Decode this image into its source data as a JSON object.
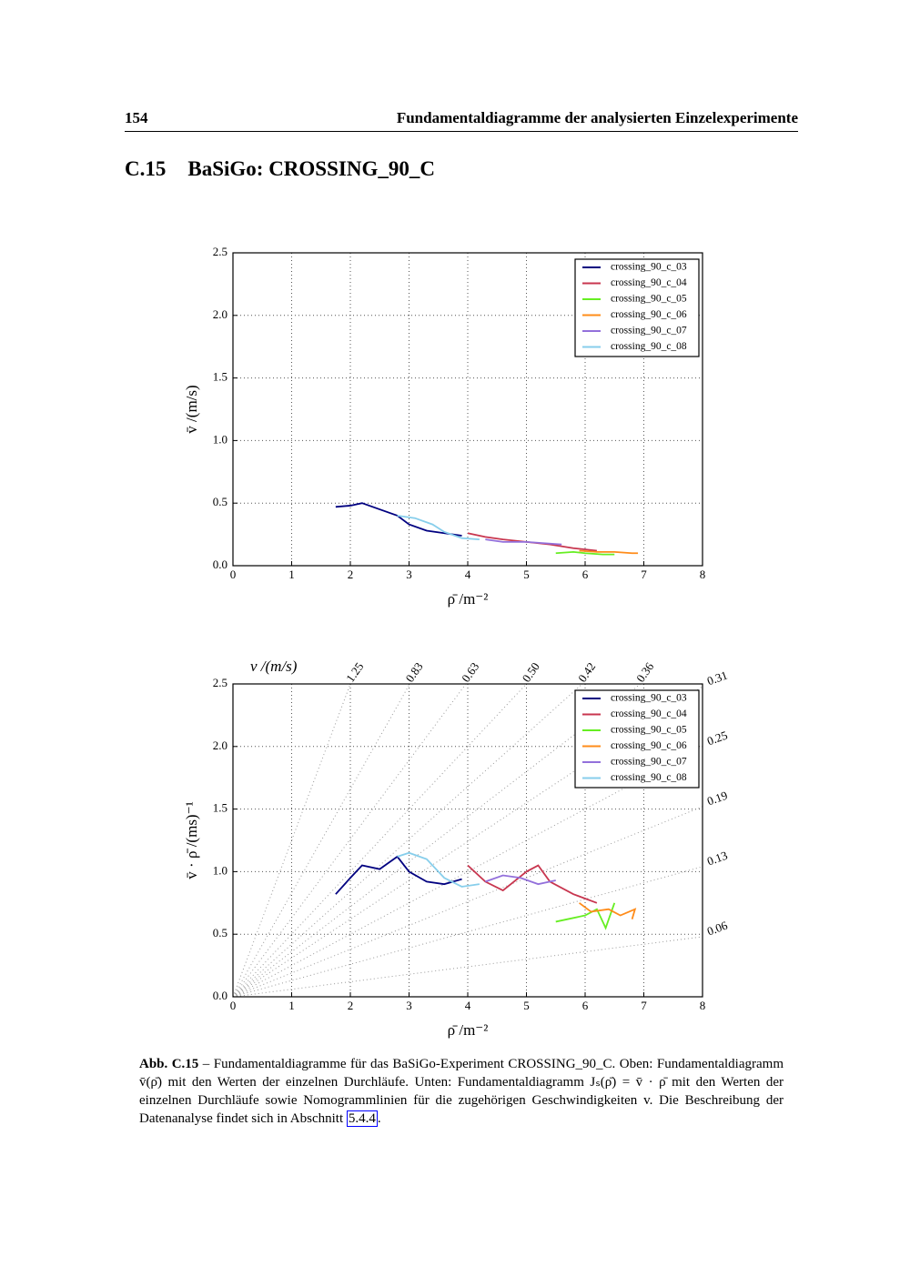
{
  "header": {
    "page_number": "154",
    "running_title": "Fundamentaldiagramme der analysierten Einzelexperimente"
  },
  "section": {
    "number": "C.15",
    "title": "BaSiGo: CROSSING_90_C"
  },
  "chart_data": [
    {
      "type": "line",
      "x_label": "ρ̄   /m⁻²",
      "y_label": "v̄   /(m/s)",
      "xlim": [
        0,
        8
      ],
      "xticks": [
        0,
        1,
        2,
        3,
        4,
        5,
        6,
        7,
        8
      ],
      "ylim": [
        0,
        2.5
      ],
      "yticks": [
        {
          "value": 0,
          "label": "0.0"
        },
        0.5,
        {
          "value": 1,
          "label": "1.0"
        },
        1.5,
        {
          "value": 2,
          "label": "2.0"
        },
        2.5
      ],
      "grid": true,
      "legend": "upper-right",
      "series": [
        {
          "name": "crossing_90_c_03",
          "color": "#000080",
          "x": [
            1.75,
            2.0,
            2.2,
            2.5,
            2.8,
            3.0,
            3.3,
            3.6,
            3.9
          ],
          "values": [
            0.47,
            0.48,
            0.5,
            0.45,
            0.4,
            0.33,
            0.28,
            0.26,
            0.24
          ]
        },
        {
          "name": "crossing_90_c_04",
          "color": "#c8364f",
          "x": [
            4.0,
            4.3,
            4.6,
            5.0,
            5.4,
            5.8,
            6.2
          ],
          "values": [
            0.26,
            0.23,
            0.21,
            0.19,
            0.17,
            0.14,
            0.12
          ]
        },
        {
          "name": "crossing_90_c_05",
          "color": "#66ee22",
          "x": [
            5.5,
            5.8,
            6.0,
            6.3,
            6.5
          ],
          "values": [
            0.1,
            0.11,
            0.1,
            0.09,
            0.09
          ]
        },
        {
          "name": "crossing_90_c_06",
          "color": "#ff8c1a",
          "x": [
            5.9,
            6.2,
            6.5,
            6.8,
            6.9
          ],
          "values": [
            0.12,
            0.11,
            0.11,
            0.1,
            0.1
          ]
        },
        {
          "name": "crossing_90_c_07",
          "color": "#9370db",
          "x": [
            4.3,
            4.6,
            5.0,
            5.3,
            5.6
          ],
          "values": [
            0.21,
            0.19,
            0.19,
            0.18,
            0.17
          ]
        },
        {
          "name": "crossing_90_c_08",
          "color": "#87ceeb",
          "x": [
            2.8,
            3.1,
            3.4,
            3.6,
            3.9,
            4.2
          ],
          "values": [
            0.4,
            0.38,
            0.33,
            0.27,
            0.22,
            0.21
          ]
        }
      ]
    },
    {
      "type": "line",
      "x_label": "ρ̄   /m⁻²",
      "y_label": "v̄ · ρ̄   /(ms)⁻¹",
      "xlim": [
        0,
        8
      ],
      "xticks": [
        0,
        1,
        2,
        3,
        4,
        5,
        6,
        7,
        8
      ],
      "ylim": [
        0,
        2.5
      ],
      "yticks": [
        {
          "value": 0,
          "label": "0.0"
        },
        0.5,
        {
          "value": 1,
          "label": "1.0"
        },
        1.5,
        {
          "value": 2,
          "label": "2.0"
        },
        2.5
      ],
      "grid": true,
      "legend": "upper-right",
      "nomogram_label": "v   /(m/s)",
      "nomogram_top": [
        1.25,
        0.83,
        0.63,
        {
          "value": 0.5,
          "label": "0.50"
        },
        0.42,
        0.36
      ],
      "nomogram_right": [
        0.31,
        0.25,
        0.19,
        0.13,
        0.06
      ],
      "series": [
        {
          "name": "crossing_90_c_03",
          "color": "#000080",
          "x": [
            1.75,
            2.0,
            2.2,
            2.5,
            2.8,
            3.0,
            3.3,
            3.6,
            3.9
          ],
          "values": [
            0.82,
            0.95,
            1.05,
            1.02,
            1.12,
            1.0,
            0.92,
            0.9,
            0.94
          ]
        },
        {
          "name": "crossing_90_c_04",
          "color": "#c8364f",
          "x": [
            4.0,
            4.3,
            4.6,
            5.0,
            5.2,
            5.4,
            5.8,
            6.2
          ],
          "values": [
            1.05,
            0.92,
            0.85,
            1.0,
            1.05,
            0.92,
            0.82,
            0.75
          ]
        },
        {
          "name": "crossing_90_c_05",
          "color": "#66ee22",
          "x": [
            5.5,
            5.7,
            6.0,
            6.2,
            6.35,
            6.5
          ],
          "values": [
            0.6,
            0.62,
            0.65,
            0.7,
            0.55,
            0.75
          ]
        },
        {
          "name": "crossing_90_c_06",
          "color": "#ff8c1a",
          "x": [
            5.9,
            6.1,
            6.4,
            6.6,
            6.85,
            6.8
          ],
          "values": [
            0.75,
            0.68,
            0.7,
            0.65,
            0.7,
            0.62
          ]
        },
        {
          "name": "crossing_90_c_07",
          "color": "#9370db",
          "x": [
            4.3,
            4.6,
            4.9,
            5.2,
            5.5
          ],
          "values": [
            0.92,
            0.97,
            0.95,
            0.9,
            0.93
          ]
        },
        {
          "name": "crossing_90_c_08",
          "color": "#87ceeb",
          "x": [
            2.8,
            3.0,
            3.3,
            3.6,
            3.9,
            4.2
          ],
          "values": [
            1.12,
            1.15,
            1.1,
            0.95,
            0.88,
            0.9
          ]
        }
      ]
    }
  ],
  "caption": {
    "label": "Abb. C.15",
    "text": "– Fundamentaldiagramme für das BaSiGo-Experiment CROSSING_90_C. Oben: Fundamentaldiagramm v̄(ρ̄) mit den Werten der einzelnen Durchläufe. Unten: Fundamentaldiagramm Jₛ(ρ̄) = v̄ · ρ̄ mit den Werten der einzelnen Durchläufe sowie Nomogrammlinien für die zugehörigen Geschwindigkeiten v. Die Beschreibung der Datenanalyse findet sich in Abschnitt",
    "link": "5.4.4",
    "end": "."
  }
}
